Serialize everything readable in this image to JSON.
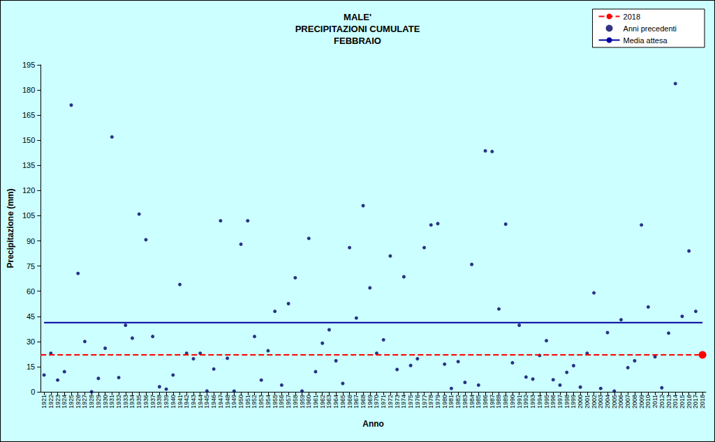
{
  "chart_data": {
    "type": "scatter",
    "title": "MALE'\nPRECIPITAZIONI CUMULATE\nFEBBRAIO",
    "x_label": "Anno",
    "y_label": "Precipitazione (mm)",
    "categories": [
      "1921",
      "1922",
      "1923",
      "1924",
      "1925",
      "1926",
      "1927",
      "1928",
      "1929",
      "1930",
      "1931",
      "1932",
      "1933",
      "1934",
      "1935",
      "1936",
      "1937",
      "1938",
      "1939",
      "1940",
      "1941",
      "1942",
      "1943",
      "1944",
      "1945",
      "1946",
      "1947",
      "1948",
      "1949",
      "1950",
      "1951",
      "1952",
      "1953",
      "1954",
      "1955",
      "1956",
      "1957",
      "1958",
      "1959",
      "1960",
      "1961",
      "1962",
      "1963",
      "1964",
      "1965",
      "1966",
      "1967",
      "1968",
      "1969",
      "1970",
      "1971",
      "1972",
      "1973",
      "1974",
      "1975",
      "1976",
      "1977",
      "1978",
      "1979",
      "1980",
      "1981",
      "1982",
      "1983",
      "1984",
      "1985",
      "1986",
      "1987",
      "1988",
      "1989",
      "1990",
      "1991",
      "1992",
      "1993",
      "1994",
      "1995",
      "1996",
      "1997",
      "1998",
      "1999",
      "2000",
      "2001",
      "2002",
      "2003",
      "2004",
      "2005",
      "2006",
      "2007",
      "2008",
      "2009",
      "2010",
      "2011",
      "2012",
      "2013",
      "2014",
      "2015",
      "2016",
      "2017",
      "2018"
    ],
    "series": [
      {
        "name": "2018",
        "type": "line",
        "line_style": "dashed",
        "marker": "circle",
        "color": "#ff0000",
        "values": [
          null,
          null,
          null,
          null,
          null,
          null,
          null,
          null,
          null,
          null,
          null,
          null,
          null,
          null,
          null,
          null,
          null,
          null,
          null,
          null,
          null,
          null,
          null,
          null,
          null,
          null,
          null,
          null,
          null,
          null,
          null,
          null,
          null,
          null,
          null,
          null,
          null,
          null,
          null,
          null,
          null,
          null,
          null,
          null,
          null,
          null,
          null,
          null,
          null,
          null,
          null,
          null,
          null,
          null,
          null,
          null,
          null,
          null,
          null,
          null,
          null,
          null,
          null,
          null,
          null,
          null,
          null,
          null,
          null,
          null,
          null,
          null,
          null,
          null,
          null,
          null,
          null,
          null,
          null,
          null,
          null,
          null,
          null,
          null,
          null,
          null,
          null,
          null,
          null,
          null,
          null,
          null,
          null,
          null,
          null,
          null,
          null,
          22
        ]
      },
      {
        "name": "Anni precedenti",
        "type": "scatter",
        "marker": "circle",
        "color": "#000066",
        "values": [
          10,
          23,
          7,
          12,
          171,
          70.6,
          30,
          0,
          8,
          26,
          152,
          8.5,
          39.7,
          32,
          106,
          90.7,
          33,
          3,
          1.6,
          10,
          64,
          23,
          19.7,
          23,
          0.5,
          13.6,
          102,
          20,
          0.4,
          88,
          102,
          33,
          7,
          24.5,
          48,
          4,
          52.6,
          68,
          0.5,
          91.5,
          12,
          29,
          37,
          18.5,
          5,
          86,
          44,
          111,
          62,
          23,
          31,
          81,
          13.3,
          68.6,
          15.7,
          19.7,
          86,
          99.5,
          100.3,
          16.5,
          2,
          18,
          5.6,
          76,
          4,
          143.7,
          143.3,
          49.4,
          100,
          17.3,
          39.7,
          8.8,
          7.6,
          21.7,
          30.5,
          7.2,
          4,
          11.6,
          15.6,
          2.8,
          23,
          59,
          2,
          35.3,
          0.4,
          43,
          14.4,
          18.5,
          99.5,
          50.6,
          20.9,
          2.4,
          35,
          183.8,
          45,
          84,
          48,
          null
        ]
      },
      {
        "name": "Media attesa",
        "type": "line",
        "line_style": "solid",
        "color": "#0000a0",
        "values": [
          41.3,
          41.3,
          41.3,
          41.3,
          41.3,
          41.3,
          41.3,
          41.3,
          41.3,
          41.3,
          41.3,
          41.3,
          41.3,
          41.3,
          41.3,
          41.3,
          41.3,
          41.3,
          41.3,
          41.3,
          41.3,
          41.3,
          41.3,
          41.3,
          41.3,
          41.3,
          41.3,
          41.3,
          41.3,
          41.3,
          41.3,
          41.3,
          41.3,
          41.3,
          41.3,
          41.3,
          41.3,
          41.3,
          41.3,
          41.3,
          41.3,
          41.3,
          41.3,
          41.3,
          41.3,
          41.3,
          41.3,
          41.3,
          41.3,
          41.3,
          41.3,
          41.3,
          41.3,
          41.3,
          41.3,
          41.3,
          41.3,
          41.3,
          41.3,
          41.3,
          41.3,
          41.3,
          41.3,
          41.3,
          41.3,
          41.3,
          41.3,
          41.3,
          41.3,
          41.3,
          41.3,
          41.3,
          41.3,
          41.3,
          41.3,
          41.3,
          41.3,
          41.3,
          41.3,
          41.3,
          41.3,
          41.3,
          41.3,
          41.3,
          41.3,
          41.3,
          41.3,
          41.3,
          41.3,
          41.3,
          41.3,
          41.3,
          41.3,
          41.3,
          41.3,
          41.3,
          41.3,
          41.3
        ]
      }
    ],
    "ylim": [
      0,
      195
    ],
    "yticks": [
      0,
      15,
      30,
      45,
      60,
      75,
      90,
      105,
      120,
      135,
      150,
      165,
      180,
      195
    ],
    "grid": false,
    "legend": "top-right"
  }
}
